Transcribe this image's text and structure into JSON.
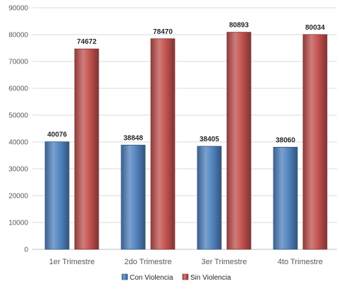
{
  "chart_data": {
    "type": "bar",
    "categories": [
      "1er Trimestre",
      "2do Trimestre",
      "3er Trimestre",
      "4to Trimestre"
    ],
    "series": [
      {
        "name": "Con Violencia",
        "values": [
          40076,
          38848,
          38405,
          38060
        ],
        "color": "#4f81bd"
      },
      {
        "name": "Sin Violencia",
        "values": [
          74672,
          78470,
          80893,
          80034
        ],
        "color": "#c0504d"
      }
    ],
    "ylim": [
      0,
      90000
    ],
    "yticks": [
      0,
      10000,
      20000,
      30000,
      40000,
      50000,
      60000,
      70000,
      80000,
      90000
    ],
    "grid": true,
    "legend_position": "bottom",
    "data_labels": true
  }
}
